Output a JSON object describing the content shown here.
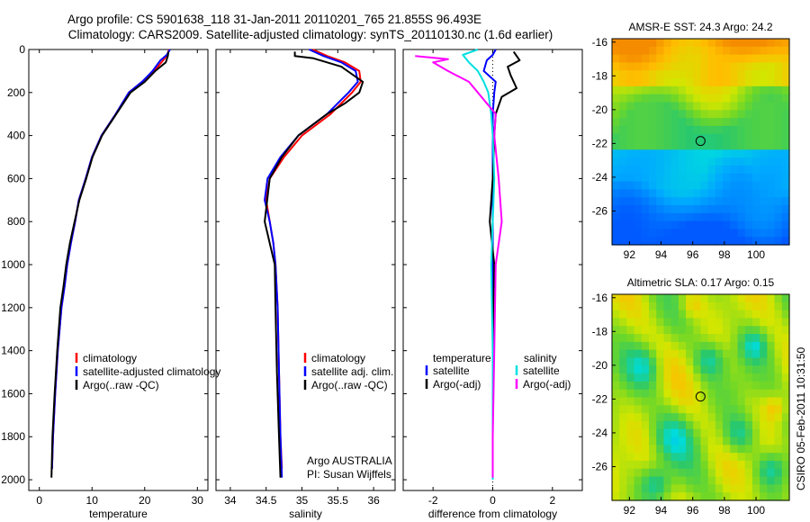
{
  "title": {
    "line1": "Argo profile: CS 5901638_118 31-Jan-2011 20110201_765 21.855S 96.493E",
    "line2": "Climatology: CARS2009. Satellite-adjusted climatology: synTS_20110130.nc (1.6d earlier)"
  },
  "side_label": "CSIRO 05-Feb-2011 10:31:50",
  "colors": {
    "climatology": "#ff0000",
    "satellite": "#0000ff",
    "argo": "#000000",
    "salinity_sat": "#00e0e0",
    "salinity_argo": "#ff00ff"
  },
  "chart_data": [
    {
      "id": "temperature",
      "type": "line",
      "xlabel": "temperature",
      "ylabel": "",
      "xlim": [
        -2,
        32
      ],
      "ylim": [
        0,
        2050
      ],
      "y_inverted": true,
      "xticks": [
        0,
        10,
        20,
        30
      ],
      "yticks": [
        0,
        200,
        400,
        600,
        800,
        1000,
        1200,
        1400,
        1600,
        1800,
        2000
      ],
      "legend": [
        "climatology",
        "satellite-adjusted climatology",
        "Argo(..raw -QC)"
      ],
      "legend_placement": "bottom-center",
      "series": [
        {
          "name": "climatology",
          "color": "#ff0000",
          "x": [
            24.6,
            24.3,
            23.5,
            21.8,
            19.5,
            17.0,
            14.5,
            11.8,
            10.0,
            8.8,
            7.5,
            6.8,
            6.0,
            5.3,
            4.8,
            4.2,
            3.5,
            3.0,
            2.6,
            2.4
          ],
          "y": [
            0,
            25,
            50,
            100,
            150,
            200,
            300,
            400,
            500,
            600,
            700,
            800,
            900,
            1000,
            1100,
            1200,
            1400,
            1600,
            1800,
            1950
          ]
        },
        {
          "name": "satellite-adjusted climatology",
          "color": "#0000ff",
          "x": [
            24.8,
            24.2,
            23.0,
            21.5,
            19.5,
            17.0,
            14.5,
            11.8,
            10.0,
            8.8,
            7.5,
            6.8,
            6.0,
            5.3,
            4.8,
            4.2,
            3.5,
            3.0,
            2.6,
            2.4
          ],
          "y": [
            0,
            25,
            50,
            100,
            150,
            200,
            300,
            400,
            500,
            600,
            700,
            800,
            900,
            1000,
            1100,
            1200,
            1400,
            1600,
            1800,
            1950
          ]
        },
        {
          "name": "Argo(..raw -QC)",
          "color": "#000000",
          "x": [
            24.5,
            24.4,
            24.0,
            22.0,
            20.0,
            17.3,
            14.6,
            11.9,
            10.1,
            8.9,
            7.6,
            6.7,
            5.8,
            5.1,
            4.6,
            4.0,
            3.4,
            2.9,
            2.5,
            2.3
          ],
          "y": [
            10,
            30,
            60,
            100,
            150,
            200,
            300,
            400,
            500,
            600,
            700,
            800,
            900,
            1000,
            1100,
            1200,
            1400,
            1600,
            1800,
            1990
          ]
        }
      ]
    },
    {
      "id": "salinity",
      "type": "line",
      "xlabel": "salinity",
      "xlim": [
        33.8,
        36.3
      ],
      "ylim": [
        0,
        2050
      ],
      "y_inverted": true,
      "xticks": [
        34,
        34.5,
        35,
        35.5,
        36
      ],
      "xtick_labels": [
        "34",
        "34.5",
        "35",
        "35.5",
        "36"
      ],
      "legend": [
        "climatology",
        "satellite adj. clim.",
        "Argo(..raw -QC)"
      ],
      "legend_placement": "bottom-center",
      "annotation": [
        "Argo AUSTRALIA",
        "PI: Susan Wijffels"
      ],
      "series": [
        {
          "name": "climatology",
          "color": "#ff0000",
          "x": [
            35.15,
            35.35,
            35.6,
            35.8,
            35.82,
            35.7,
            35.4,
            35.0,
            34.75,
            34.55,
            34.5,
            34.55,
            34.6,
            34.63,
            34.66,
            34.68,
            34.7,
            34.72
          ],
          "y": [
            0,
            30,
            60,
            100,
            150,
            200,
            300,
            400,
            500,
            600,
            700,
            800,
            900,
            1000,
            1200,
            1500,
            1800,
            1950
          ]
        },
        {
          "name": "satellite adj. clim.",
          "color": "#0000ff",
          "x": [
            35.1,
            35.3,
            35.55,
            35.75,
            35.78,
            35.65,
            35.35,
            34.95,
            34.7,
            34.52,
            34.48,
            34.55,
            34.6,
            34.63,
            34.66,
            34.68,
            34.7,
            34.72
          ],
          "y": [
            0,
            30,
            60,
            100,
            150,
            200,
            300,
            400,
            500,
            600,
            700,
            800,
            900,
            1000,
            1200,
            1500,
            1800,
            1990
          ]
        },
        {
          "name": "Argo(..raw -QC)",
          "color": "#000000",
          "x": [
            34.9,
            34.9,
            35.15,
            35.55,
            35.85,
            35.8,
            35.6,
            35.35,
            34.95,
            34.72,
            34.55,
            34.48,
            34.55,
            34.62,
            34.63,
            34.65,
            34.68,
            34.7
          ],
          "y": [
            10,
            30,
            40,
            80,
            150,
            200,
            250,
            300,
            400,
            500,
            600,
            800,
            900,
            1000,
            1200,
            1500,
            1800,
            1990
          ]
        }
      ]
    },
    {
      "id": "difference",
      "type": "line",
      "xlabel": "difference from climatology",
      "xlim": [
        -3,
        3
      ],
      "ylim": [
        0,
        2050
      ],
      "y_inverted": true,
      "xticks": [
        -2,
        0,
        2
      ],
      "legend_left": {
        "heading": "temperature",
        "entries": [
          "satellite",
          "Argo(-adj)"
        ]
      },
      "legend_right": {
        "heading": "salinity",
        "entries": [
          "satellite",
          "Argo(-adj)"
        ]
      },
      "legend_placement": "middle",
      "series": [
        {
          "name": "temperature satellite",
          "color": "#0000ff",
          "x": [
            0.1,
            0.0,
            -0.2,
            -0.3,
            0.1,
            0.05,
            0.0,
            0.0,
            0.0,
            0.0,
            0.0,
            0.0,
            0.0,
            0.0
          ],
          "y": [
            0,
            25,
            50,
            100,
            150,
            200,
            300,
            400,
            600,
            800,
            1000,
            1400,
            1800,
            1990
          ]
        },
        {
          "name": "temperature Argo(-adj)",
          "color": "#000000",
          "x": [
            0.7,
            0.9,
            0.5,
            0.6,
            0.8,
            0.3,
            0.1,
            0.05,
            0.0,
            -0.1,
            0.05,
            0.0,
            0.0,
            0.0
          ],
          "y": [
            10,
            50,
            80,
            120,
            180,
            220,
            300,
            400,
            600,
            800,
            1000,
            1400,
            1800,
            1990
          ]
        },
        {
          "name": "salinity satellite",
          "color": "#00e0e0",
          "x": [
            -0.5,
            -1.0,
            -0.8,
            -0.5,
            -0.3,
            -0.15,
            -0.05,
            0.0,
            0.05,
            0.0,
            -0.05,
            0.0,
            0.0,
            0.0
          ],
          "y": [
            0,
            25,
            60,
            100,
            150,
            200,
            300,
            400,
            600,
            800,
            1000,
            1400,
            1800,
            2000
          ]
        },
        {
          "name": "salinity Argo(-adj)",
          "color": "#ff00ff",
          "x": [
            -2.6,
            -1.5,
            -2.0,
            -1.5,
            -0.8,
            -0.5,
            0.1,
            0.05,
            0.2,
            0.3,
            0.1,
            0.05,
            0.0,
            0.0
          ],
          "y": [
            30,
            45,
            60,
            100,
            150,
            200,
            300,
            400,
            600,
            800,
            1000,
            1400,
            1800,
            1990
          ]
        }
      ]
    },
    {
      "id": "sst_map",
      "type": "heatmap",
      "title": "AMSR-E SST: 24.3 Argo: 24.2",
      "xlim": [
        90.9,
        102.1
      ],
      "ylim": [
        -28.0,
        -15.8
      ],
      "xticks": [
        92,
        94,
        96,
        98,
        100
      ],
      "yticks": [
        -16,
        -18,
        -20,
        -22,
        -24,
        -26
      ],
      "marker": {
        "lon": 96.493,
        "lat": -21.855
      }
    },
    {
      "id": "sla_map",
      "type": "heatmap",
      "title": "Altimetric SLA: 0.17 Argo: 0.15",
      "xlim": [
        90.9,
        102.1
      ],
      "ylim": [
        -28.0,
        -15.8
      ],
      "xticks": [
        92,
        94,
        96,
        98,
        100
      ],
      "yticks": [
        -16,
        -18,
        -20,
        -22,
        -24,
        -26
      ],
      "marker": {
        "lon": 96.493,
        "lat": -21.855
      }
    }
  ]
}
